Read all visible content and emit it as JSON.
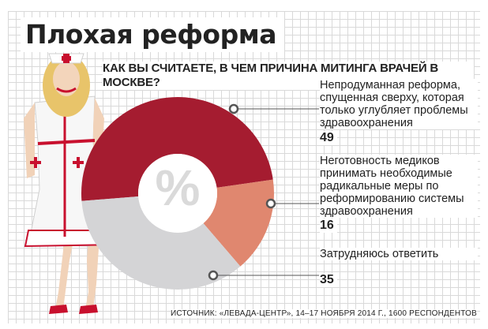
{
  "title": "Плохая реформа",
  "question": "КАК ВЫ СЧИТАЕТЕ, В ЧЕМ ПРИЧИНА МИТИНГА ВРАЧЕЙ В МОСКВЕ?",
  "center_label": "%",
  "source": "ИСТОЧНИК: «ЛЕВАДА-ЦЕНТР», 14–17 НОЯБРЯ 2014 Г., 1600 РЕСПОНДЕНТОВ",
  "chart_data": {
    "type": "pie",
    "title": "КАК ВЫ СЧИТАЕТЕ, В ЧЕМ ПРИЧИНА МИТИНГА ВРАЧЕЙ В МОСКВЕ?",
    "unit": "%",
    "categories": [
      "Непродуманная реформа, спущенная сверху, которая только углубляет проблемы здравоохранения",
      "Неготовность медиков принимать необходимые радикальные меры по реформированию системы здравоохранения",
      "Затрудняюсь ответить"
    ],
    "values": [
      49,
      16,
      35
    ],
    "value_labels": [
      "49",
      "16",
      "35"
    ],
    "colors": [
      "#a51c30",
      "#e0876f",
      "#d4d4d6"
    ]
  }
}
